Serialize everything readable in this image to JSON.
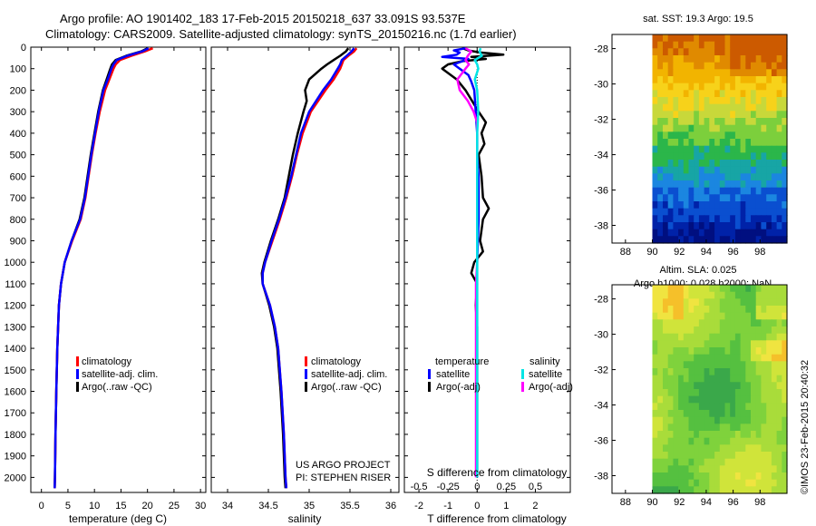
{
  "header": {
    "line1": "Argo profile: AO 1901402_183 17-Feb-2015 20150218_637 33.091S 93.537E",
    "line2": "Climatology: CARS2009. Satellite-adjusted climatology: synTS_20150216.nc (1.7d earlier)"
  },
  "colors": {
    "climatology": "#ff0000",
    "satellite": "#0000ff",
    "argo": "#000000",
    "sal_satellite": "#00e5e5",
    "sal_argo": "#ff00ff"
  },
  "chart_data": [
    {
      "type": "line",
      "panel": "temperature",
      "xlabel": "temperature (deg C)",
      "xlim": [
        -2,
        31
      ],
      "xticks": [
        "0",
        "5",
        "10",
        "15",
        "20",
        "25",
        "30"
      ],
      "ylim": [
        2070,
        0
      ],
      "yticks": [
        "0",
        "100",
        "200",
        "300",
        "400",
        "500",
        "600",
        "700",
        "800",
        "900",
        "1000",
        "1100",
        "1200",
        "1300",
        "1400",
        "1500",
        "1600",
        "1700",
        "1800",
        "1900",
        "2000"
      ],
      "legend": [
        "climatology",
        "satellite-adj. clim.",
        "Argo(..raw -QC)"
      ],
      "series": [
        {
          "name": "climatology",
          "depth": [
            5,
            20,
            40,
            60,
            80,
            100,
            150,
            200,
            300,
            400,
            500,
            600,
            700,
            800,
            900,
            1000,
            1100,
            1200,
            1400,
            1600,
            1800,
            2000,
            2050
          ],
          "values": [
            21.0,
            19.5,
            17.0,
            14.8,
            14.0,
            13.6,
            12.8,
            12.0,
            11.0,
            10.2,
            9.5,
            8.9,
            8.3,
            7.4,
            5.8,
            4.4,
            3.7,
            3.3,
            3.0,
            2.8,
            2.65,
            2.55,
            2.5
          ]
        },
        {
          "name": "satellite-adj. clim.",
          "depth": [
            5,
            20,
            40,
            60,
            80,
            100,
            150,
            200,
            300,
            400,
            500,
            600,
            700,
            800,
            900,
            1000,
            1100,
            1200,
            1400,
            1600,
            1800,
            2000,
            2050
          ],
          "values": [
            20.2,
            19.0,
            16.2,
            14.2,
            13.6,
            13.2,
            12.5,
            11.7,
            10.8,
            10.1,
            9.4,
            8.8,
            8.2,
            7.3,
            5.7,
            4.4,
            3.7,
            3.3,
            3.0,
            2.8,
            2.65,
            2.55,
            2.5
          ]
        },
        {
          "name": "Argo(..raw -QC)",
          "depth": [
            5,
            20,
            40,
            60,
            80,
            100,
            150,
            200,
            300,
            400,
            500,
            600,
            700,
            800,
            900,
            1000,
            1100,
            1200,
            1400,
            1600,
            1800,
            2000,
            2050
          ],
          "values": [
            20.0,
            18.8,
            16.0,
            14.0,
            13.3,
            13.0,
            12.3,
            11.6,
            10.7,
            10.0,
            9.3,
            8.7,
            8.1,
            7.2,
            5.7,
            4.4,
            3.7,
            3.3,
            3.0,
            2.8,
            2.65,
            2.55,
            2.5
          ]
        }
      ]
    },
    {
      "type": "line",
      "panel": "salinity",
      "xlabel": "salinity",
      "xlim": [
        33.8,
        36.1
      ],
      "xticks": [
        "34",
        "34.5",
        "35",
        "35.5",
        "36"
      ],
      "ylim": [
        2070,
        0
      ],
      "legend": [
        "climatology",
        "satellite-adj. clim.",
        "Argo(..raw -QC)"
      ],
      "annotations": [
        "US ARGO PROJECT",
        "PI: STEPHEN RISER"
      ],
      "series": [
        {
          "name": "climatology",
          "depth": [
            5,
            20,
            40,
            60,
            80,
            100,
            150,
            200,
            300,
            400,
            500,
            600,
            700,
            800,
            900,
            1000,
            1050,
            1100,
            1200,
            1300,
            1400,
            1600,
            1800,
            2000,
            2050
          ],
          "values": [
            35.58,
            35.55,
            35.48,
            35.42,
            35.4,
            35.38,
            35.3,
            35.2,
            35.02,
            34.92,
            34.85,
            34.79,
            34.72,
            34.64,
            34.55,
            34.46,
            34.43,
            34.43,
            34.52,
            34.58,
            34.62,
            34.66,
            34.69,
            34.71,
            34.72
          ]
        },
        {
          "name": "satellite-adj. clim.",
          "depth": [
            5,
            20,
            40,
            60,
            80,
            100,
            150,
            200,
            300,
            400,
            500,
            600,
            700,
            800,
            900,
            1000,
            1050,
            1100,
            1200,
            1300,
            1400,
            1600,
            1800,
            2000,
            2050
          ],
          "values": [
            35.55,
            35.52,
            35.46,
            35.4,
            35.38,
            35.35,
            35.27,
            35.17,
            35.0,
            34.9,
            34.84,
            34.78,
            34.71,
            34.63,
            34.54,
            34.46,
            34.43,
            34.43,
            34.52,
            34.58,
            34.62,
            34.66,
            34.69,
            34.71,
            34.72
          ]
        },
        {
          "name": "Argo(..raw -QC)",
          "depth": [
            5,
            20,
            40,
            60,
            80,
            100,
            150,
            200,
            250,
            300,
            400,
            500,
            600,
            700,
            800,
            900,
            1000,
            1050,
            1100,
            1200,
            1300,
            1400,
            1600,
            1800,
            2000,
            2050
          ],
          "values": [
            35.48,
            35.45,
            35.38,
            35.3,
            35.22,
            35.15,
            35.0,
            34.95,
            34.97,
            34.93,
            34.86,
            34.8,
            34.75,
            34.7,
            34.62,
            34.53,
            34.45,
            34.42,
            34.43,
            34.51,
            34.57,
            34.61,
            34.65,
            34.68,
            34.7,
            34.71
          ]
        }
      ]
    },
    {
      "type": "line",
      "panel": "difference",
      "xlabel": "T difference from climatology",
      "x2label": "S difference from climatology",
      "xlim": [
        -2.5,
        3.2
      ],
      "xticks": [
        "-2",
        "-1",
        "0",
        "1",
        "2"
      ],
      "x2ticks": [
        "-0.5",
        "-0.25",
        "0",
        "0.25",
        "0.5"
      ],
      "ylim": [
        2070,
        0
      ],
      "legend_temperature_title": "temperature",
      "legend_salinity_title": "salinity",
      "legend_temperature": [
        "satellite",
        "Argo(-adj)"
      ],
      "legend_salinity": [
        "satellite",
        "Argo(-adj)"
      ],
      "series": [
        {
          "name": "T satellite",
          "depth": [
            5,
            15,
            25,
            35,
            45,
            55,
            65,
            80,
            100,
            130,
            160,
            200,
            300,
            400,
            500,
            600,
            800,
            1000,
            1200,
            1400,
            1600,
            1800,
            2000
          ],
          "values": [
            -0.4,
            -0.8,
            -0.6,
            -0.7,
            -1.2,
            -0.3,
            -0.5,
            -0.8,
            -0.6,
            -0.3,
            -0.2,
            -0.1,
            -0.05,
            0.0,
            0.0,
            0.05,
            0.05,
            0.0,
            0.0,
            0.0,
            0.0,
            0.0,
            0.0
          ]
        },
        {
          "name": "T Argo(-adj)",
          "depth": [
            5,
            15,
            25,
            35,
            45,
            55,
            65,
            80,
            100,
            150,
            200,
            300,
            350,
            400,
            450,
            500,
            600,
            700,
            750,
            800,
            900,
            950,
            1000,
            1050,
            1100,
            1200,
            1300,
            1400,
            1500,
            1600,
            1700,
            1800,
            1900,
            2000
          ],
          "values": [
            -0.5,
            -0.3,
            0.1,
            0.9,
            -0.2,
            0.3,
            -0.5,
            -1.0,
            -1.2,
            -0.7,
            -0.4,
            0.05,
            0.3,
            0.15,
            0.25,
            0.05,
            0.15,
            0.2,
            0.4,
            0.2,
            0.1,
            0.2,
            -0.1,
            -0.2,
            0.0,
            -0.05,
            0.0,
            0.0,
            0.0,
            0.0,
            0.0,
            0.0,
            0.0,
            0.0
          ]
        },
        {
          "name": "S satellite",
          "depth": [
            5,
            20,
            40,
            60,
            80,
            100,
            150,
            200,
            300,
            400,
            600,
            800,
            1000,
            1200,
            1400,
            1600,
            1800,
            2000
          ],
          "values": [
            0.03,
            0.02,
            0.04,
            -0.02,
            0.0,
            0.01,
            -0.02,
            0.0,
            0.01,
            0.0,
            0.0,
            0.0,
            0.0,
            0.0,
            0.0,
            0.0,
            0.0,
            0.0
          ]
        },
        {
          "name": "S Argo(-adj)",
          "depth": [
            5,
            20,
            40,
            60,
            80,
            100,
            150,
            200,
            250,
            300,
            350,
            400,
            500,
            600,
            700,
            800,
            900,
            1000,
            1100,
            1200,
            1300,
            1400,
            1600,
            1800,
            2000
          ],
          "values": [
            -0.1,
            -0.05,
            -0.08,
            -0.1,
            -0.07,
            -0.1,
            -0.17,
            -0.15,
            -0.08,
            -0.03,
            0.0,
            0.0,
            0.0,
            0.0,
            0.0,
            0.0,
            0.0,
            0.0,
            -0.01,
            -0.01,
            -0.01,
            -0.01,
            -0.01,
            -0.01,
            -0.01
          ]
        }
      ]
    },
    {
      "type": "heatmap",
      "panel": "sst_map",
      "title": "sat. SST: 19.3  Argo: 19.5",
      "xlim": [
        87,
        100
      ],
      "ylim": [
        -39,
        -27.2
      ],
      "xticks": [
        "88",
        "90",
        "92",
        "94",
        "96",
        "98"
      ],
      "yticks": [
        "-28",
        "-30",
        "-32",
        "-34",
        "-36",
        "-38"
      ]
    },
    {
      "type": "heatmap",
      "panel": "sla_map",
      "title_line1": "Altim. SLA: 0.025",
      "title_line2": "Argo h1000: 0.028  h2000: NaN",
      "xlim": [
        87,
        100
      ],
      "ylim": [
        -39,
        -27.2
      ],
      "xticks": [
        "88",
        "90",
        "92",
        "94",
        "96",
        "98"
      ],
      "yticks": [
        "-28",
        "-30",
        "-32",
        "-34",
        "-36",
        "-38"
      ]
    }
  ],
  "footer": {
    "credit": "©IMOS 23-Feb-2015 20:40:32"
  }
}
